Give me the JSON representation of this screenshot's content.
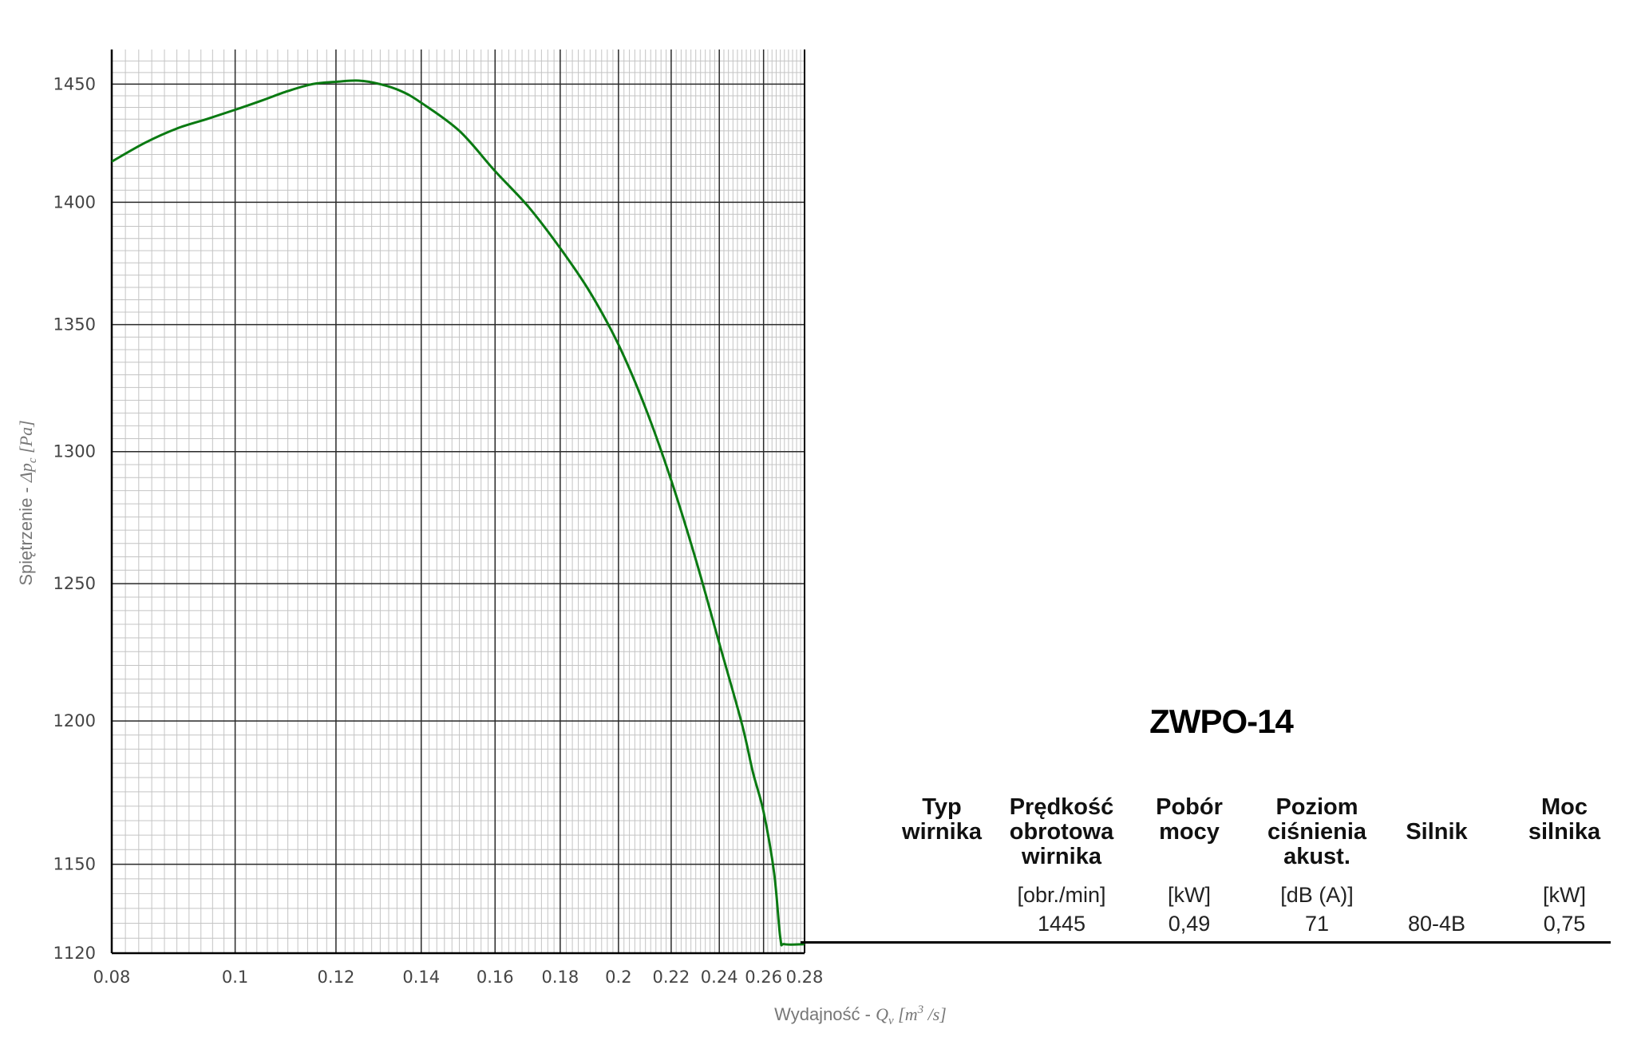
{
  "chart_data": {
    "type": "line",
    "title": "",
    "xlabel_prefix": "Wydajność - ",
    "xlabel_math": "Q",
    "xlabel_sub": "v",
    "xlabel_unit_open": " [m",
    "xlabel_unit_sup": "3",
    "xlabel_unit_close": " /s]",
    "ylabel_prefix": "Spiętrzenie - ",
    "ylabel_math": "Δp",
    "ylabel_sub": "c",
    "ylabel_unit": " [Pa]",
    "x_scale": "log",
    "y_scale": "log",
    "xlim": [
      0.08,
      0.28
    ],
    "ylim": [
      1120,
      1465
    ],
    "x_ticks": [
      0.08,
      0.1,
      0.12,
      0.14,
      0.16,
      0.18,
      0.2,
      0.22,
      0.24,
      0.26,
      0.28
    ],
    "x_tick_labels": [
      "0.08",
      "0.1",
      "0.12",
      "0.14",
      "0.16",
      "0.18",
      "0.2",
      "0.22",
      "0.24",
      "0.26",
      "0.28"
    ],
    "y_ticks": [
      1120,
      1150,
      1200,
      1250,
      1300,
      1350,
      1400,
      1450
    ],
    "y_tick_labels": [
      "1120",
      "1150",
      "1200",
      "1250",
      "1300",
      "1350",
      "1400",
      "1450"
    ],
    "grid": true,
    "series": [
      {
        "color": "#0a7a12",
        "x": [
          0.08,
          0.085,
          0.09,
          0.095,
          0.1,
          0.105,
          0.11,
          0.115,
          0.12,
          0.125,
          0.13,
          0.135,
          0.14,
          0.15,
          0.16,
          0.17,
          0.18,
          0.19,
          0.2,
          0.21,
          0.22,
          0.23,
          0.24,
          0.25,
          0.255,
          0.26,
          0.265,
          0.268,
          0.27,
          0.28
        ],
        "y": [
          1417,
          1425,
          1431,
          1435,
          1439,
          1443,
          1447,
          1450,
          1451,
          1451.5,
          1450,
          1447,
          1442,
          1430,
          1413,
          1398,
          1381,
          1363,
          1342,
          1317,
          1289,
          1259,
          1228,
          1199,
          1182,
          1168,
          1147,
          1125,
          1123,
          1123
        ]
      }
    ]
  },
  "spec_table": {
    "model": "ZWPO-14",
    "columns": [
      {
        "header": [
          "Typ",
          "wirnika"
        ],
        "unit": "",
        "value": ""
      },
      {
        "header": [
          "Prędkość",
          "obrotowa",
          "wirnika"
        ],
        "unit": "[obr./min]",
        "value": "1445"
      },
      {
        "header": [
          "Pobór",
          "mocy"
        ],
        "unit": "[kW]",
        "value": "0,49"
      },
      {
        "header": [
          "Poziom",
          "ciśnienia",
          "akust."
        ],
        "unit": "[dB (A)]",
        "value": "71"
      },
      {
        "header": [
          "Silnik"
        ],
        "unit": "",
        "value": "80-4B"
      },
      {
        "header": [
          "Moc",
          "silnika"
        ],
        "unit": "[kW]",
        "value": "0,75"
      }
    ]
  }
}
